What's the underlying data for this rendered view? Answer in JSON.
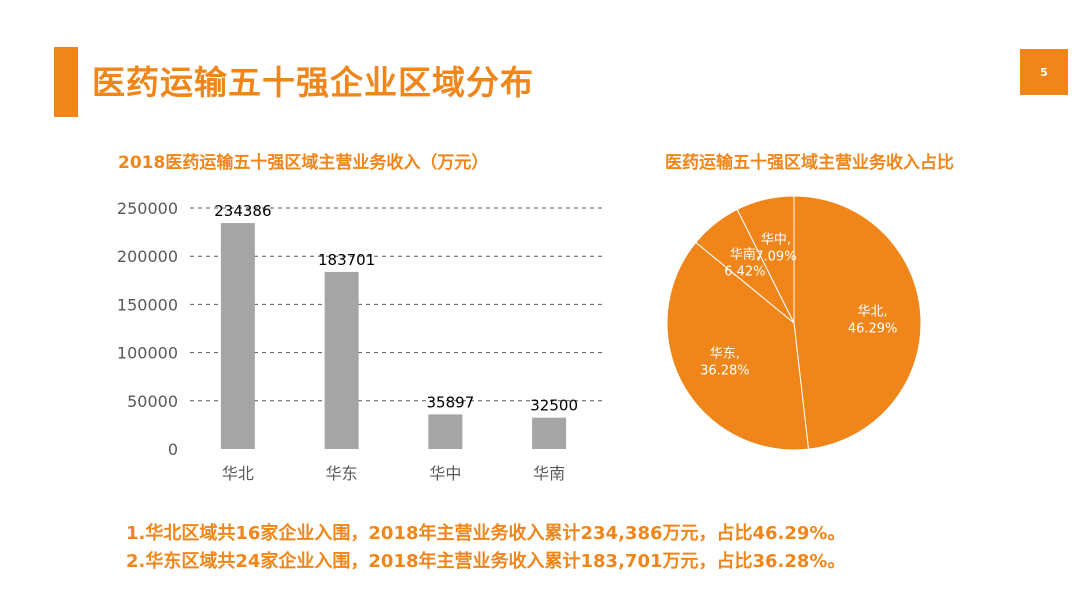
{
  "page": {
    "title": "医药运输五十强企业区域分布",
    "page_number": "5",
    "accent_color": "#f0861a"
  },
  "notes": [
    "1.华北区域共16家企业入围，2018年主营业务收入累计234,386万元，占比46.29%。",
    "2.华东区域共24家企业入围，2018年主营业务收入累计183,701万元，占比36.28%。"
  ],
  "chart_data": [
    {
      "type": "bar",
      "title": "2018医药运输五十强区域主营业务收入（万元）",
      "categories": [
        "华北",
        "华东",
        "华中",
        "华南"
      ],
      "values": [
        234386,
        183701,
        35897,
        32500
      ],
      "data_labels": [
        "234386",
        "183701",
        "35897",
        "32500"
      ],
      "ylim": [
        0,
        250000
      ],
      "yticks": [
        0,
        50000,
        100000,
        150000,
        200000,
        250000
      ],
      "ytick_labels": [
        "0",
        "50000",
        "100000",
        "150000",
        "200000",
        "250000"
      ],
      "grid": true,
      "bar_color": "#a5a5a7"
    },
    {
      "type": "pie",
      "title": "医药运输五十强区域主营业务收入占比",
      "slices": [
        {
          "label": "华北,",
          "pct_label": "46.29%",
          "value": 46.29
        },
        {
          "label": "华东,",
          "pct_label": "36.28%",
          "value": 36.28
        },
        {
          "label": "华南,",
          "pct_label": "6.42%",
          "value": 6.42
        },
        {
          "label": "华中,",
          "pct_label": "7.09%",
          "value": 7.09
        }
      ],
      "slice_color": "#f0861a",
      "border_color": "#ffffff"
    }
  ]
}
